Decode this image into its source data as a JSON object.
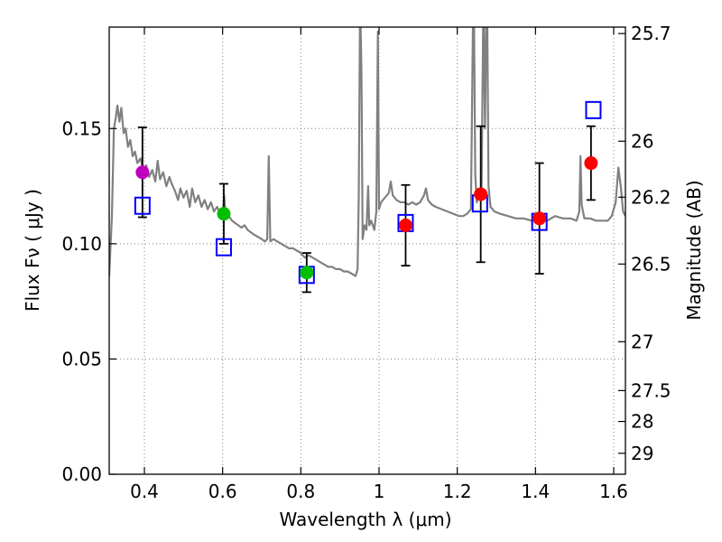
{
  "chart_data": {
    "type": "scatter",
    "title": "",
    "xlabel": "Wavelength  λ (μm)",
    "ylabel_left": "Flux  Fν  ( μJy )",
    "ylabel_right": "Magnitude (AB)",
    "xlim": [
      0.31,
      1.63
    ],
    "ylim": [
      0.0,
      0.194
    ],
    "grid": true,
    "x_ticks": [
      0.4,
      0.6,
      0.8,
      1.0,
      1.2,
      1.4,
      1.6
    ],
    "x_tick_labels": [
      "0.4",
      "0.6",
      "0.8",
      "1",
      "1.2",
      "1.4",
      "1.6"
    ],
    "y_ticks": [
      0.0,
      0.05,
      0.1,
      0.15
    ],
    "y_tick_labels": [
      "0.00",
      "0.05",
      "0.10",
      "0.15"
    ],
    "right_ticks": [
      {
        "label": "25.7",
        "flux": 0.1912
      },
      {
        "label": "26",
        "flux": 0.1445
      },
      {
        "label": "26.2",
        "flux": 0.1202
      },
      {
        "label": "26.5",
        "flux": 0.0912
      },
      {
        "label": "27",
        "flux": 0.0575
      },
      {
        "label": "27.5",
        "flux": 0.0363
      },
      {
        "label": "28",
        "flux": 0.0229
      },
      {
        "label": "29",
        "flux": 0.0091
      }
    ],
    "colors": {
      "spectrum": "#808080",
      "model_box": "#0000ff",
      "errorbar": "#000000",
      "grid": "#808080"
    },
    "observed": [
      {
        "x": 0.395,
        "y": 0.131,
        "yerr_low": 0.0195,
        "yerr_high": 0.0195,
        "color": "#bf00bf"
      },
      {
        "x": 0.603,
        "y": 0.113,
        "yerr_low": 0.013,
        "yerr_high": 0.013,
        "color": "#00bf00"
      },
      {
        "x": 0.815,
        "y": 0.0875,
        "yerr_low": 0.0085,
        "yerr_high": 0.0085,
        "color": "#00bf00"
      },
      {
        "x": 1.068,
        "y": 0.108,
        "yerr_low": 0.0175,
        "yerr_high": 0.0175,
        "color": "#ff0000"
      },
      {
        "x": 1.26,
        "y": 0.1215,
        "yerr_low": 0.0295,
        "yerr_high": 0.0295,
        "color": "#ff0000"
      },
      {
        "x": 1.41,
        "y": 0.111,
        "yerr_low": 0.024,
        "yerr_high": 0.024,
        "color": "#ff0000"
      },
      {
        "x": 1.542,
        "y": 0.135,
        "yerr_low": 0.016,
        "yerr_high": 0.016,
        "color": "#ff0000"
      }
    ],
    "model_points": [
      {
        "x": 0.395,
        "y": 0.1165
      },
      {
        "x": 0.603,
        "y": 0.0985
      },
      {
        "x": 0.815,
        "y": 0.0865
      },
      {
        "x": 1.068,
        "y": 0.109
      },
      {
        "x": 1.258,
        "y": 0.1175
      },
      {
        "x": 1.41,
        "y": 0.1095
      },
      {
        "x": 1.548,
        "y": 0.158
      }
    ],
    "spectrum": [
      [
        0.31,
        0.086
      ],
      [
        0.317,
        0.112
      ],
      [
        0.322,
        0.15
      ],
      [
        0.327,
        0.155
      ],
      [
        0.331,
        0.16
      ],
      [
        0.336,
        0.153
      ],
      [
        0.341,
        0.159
      ],
      [
        0.347,
        0.148
      ],
      [
        0.352,
        0.15
      ],
      [
        0.358,
        0.142
      ],
      [
        0.364,
        0.145
      ],
      [
        0.37,
        0.138
      ],
      [
        0.376,
        0.14
      ],
      [
        0.382,
        0.135
      ],
      [
        0.39,
        0.137
      ],
      [
        0.398,
        0.131
      ],
      [
        0.405,
        0.134
      ],
      [
        0.412,
        0.129
      ],
      [
        0.42,
        0.132
      ],
      [
        0.428,
        0.127
      ],
      [
        0.434,
        0.136
      ],
      [
        0.44,
        0.128
      ],
      [
        0.448,
        0.131
      ],
      [
        0.456,
        0.125
      ],
      [
        0.464,
        0.129
      ],
      [
        0.47,
        0.126
      ],
      [
        0.478,
        0.123
      ],
      [
        0.486,
        0.119
      ],
      [
        0.492,
        0.124
      ],
      [
        0.5,
        0.12
      ],
      [
        0.508,
        0.123
      ],
      [
        0.516,
        0.116
      ],
      [
        0.522,
        0.124
      ],
      [
        0.53,
        0.118
      ],
      [
        0.538,
        0.121
      ],
      [
        0.546,
        0.116
      ],
      [
        0.554,
        0.119
      ],
      [
        0.562,
        0.115
      ],
      [
        0.57,
        0.118
      ],
      [
        0.578,
        0.114
      ],
      [
        0.586,
        0.116
      ],
      [
        0.594,
        0.113
      ],
      [
        0.6,
        0.112
      ],
      [
        0.604,
        0.121
      ],
      [
        0.608,
        0.111
      ],
      [
        0.616,
        0.112
      ],
      [
        0.624,
        0.11
      ],
      [
        0.632,
        0.109
      ],
      [
        0.64,
        0.108
      ],
      [
        0.648,
        0.107
      ],
      [
        0.656,
        0.108
      ],
      [
        0.664,
        0.106
      ],
      [
        0.672,
        0.105
      ],
      [
        0.68,
        0.104
      ],
      [
        0.69,
        0.103
      ],
      [
        0.7,
        0.102
      ],
      [
        0.708,
        0.101
      ],
      [
        0.714,
        0.102
      ],
      [
        0.718,
        0.138
      ],
      [
        0.722,
        0.101
      ],
      [
        0.73,
        0.102
      ],
      [
        0.74,
        0.101
      ],
      [
        0.75,
        0.1
      ],
      [
        0.76,
        0.099
      ],
      [
        0.77,
        0.098
      ],
      [
        0.78,
        0.098
      ],
      [
        0.79,
        0.097
      ],
      [
        0.8,
        0.096
      ],
      [
        0.81,
        0.094
      ],
      [
        0.82,
        0.095
      ],
      [
        0.83,
        0.094
      ],
      [
        0.84,
        0.093
      ],
      [
        0.85,
        0.092
      ],
      [
        0.86,
        0.091
      ],
      [
        0.87,
        0.09
      ],
      [
        0.88,
        0.09
      ],
      [
        0.89,
        0.089
      ],
      [
        0.9,
        0.089
      ],
      [
        0.91,
        0.088
      ],
      [
        0.92,
        0.088
      ],
      [
        0.93,
        0.087
      ],
      [
        0.94,
        0.086
      ],
      [
        0.945,
        0.089
      ],
      [
        0.948,
        0.12
      ],
      [
        0.951,
        0.194
      ],
      [
        0.953,
        0.194
      ],
      [
        0.955,
        0.175
      ],
      [
        0.958,
        0.102
      ],
      [
        0.963,
        0.108
      ],
      [
        0.968,
        0.106
      ],
      [
        0.972,
        0.125
      ],
      [
        0.975,
        0.108
      ],
      [
        0.98,
        0.11
      ],
      [
        0.988,
        0.106
      ],
      [
        0.993,
        0.114
      ],
      [
        0.997,
        0.192
      ],
      [
        1.0,
        0.115
      ],
      [
        1.005,
        0.118
      ],
      [
        1.015,
        0.12
      ],
      [
        1.025,
        0.122
      ],
      [
        1.03,
        0.127
      ],
      [
        1.035,
        0.121
      ],
      [
        1.045,
        0.119
      ],
      [
        1.055,
        0.118
      ],
      [
        1.065,
        0.118
      ],
      [
        1.075,
        0.117
      ],
      [
        1.085,
        0.118
      ],
      [
        1.095,
        0.117
      ],
      [
        1.105,
        0.118
      ],
      [
        1.115,
        0.121
      ],
      [
        1.12,
        0.124
      ],
      [
        1.125,
        0.119
      ],
      [
        1.135,
        0.117
      ],
      [
        1.145,
        0.116
      ],
      [
        1.16,
        0.115
      ],
      [
        1.175,
        0.114
      ],
      [
        1.19,
        0.113
      ],
      [
        1.205,
        0.112
      ],
      [
        1.215,
        0.112
      ],
      [
        1.225,
        0.113
      ],
      [
        1.235,
        0.115
      ],
      [
        1.24,
        0.194
      ],
      [
        1.243,
        0.194
      ],
      [
        1.246,
        0.13
      ],
      [
        1.25,
        0.118
      ],
      [
        1.255,
        0.121
      ],
      [
        1.262,
        0.119
      ],
      [
        1.266,
        0.194
      ],
      [
        1.268,
        0.194
      ],
      [
        1.271,
        0.15
      ],
      [
        1.274,
        0.194
      ],
      [
        1.277,
        0.194
      ],
      [
        1.28,
        0.125
      ],
      [
        1.285,
        0.116
      ],
      [
        1.295,
        0.114
      ],
      [
        1.31,
        0.113
      ],
      [
        1.33,
        0.112
      ],
      [
        1.35,
        0.111
      ],
      [
        1.37,
        0.111
      ],
      [
        1.39,
        0.11
      ],
      [
        1.41,
        0.111
      ],
      [
        1.43,
        0.11
      ],
      [
        1.45,
        0.112
      ],
      [
        1.47,
        0.111
      ],
      [
        1.49,
        0.111
      ],
      [
        1.505,
        0.11
      ],
      [
        1.512,
        0.114
      ],
      [
        1.515,
        0.138
      ],
      [
        1.518,
        0.117
      ],
      [
        1.525,
        0.111
      ],
      [
        1.54,
        0.111
      ],
      [
        1.555,
        0.11
      ],
      [
        1.57,
        0.11
      ],
      [
        1.585,
        0.11
      ],
      [
        1.595,
        0.112
      ],
      [
        1.605,
        0.118
      ],
      [
        1.612,
        0.133
      ],
      [
        1.618,
        0.125
      ],
      [
        1.624,
        0.114
      ],
      [
        1.63,
        0.112
      ]
    ]
  }
}
